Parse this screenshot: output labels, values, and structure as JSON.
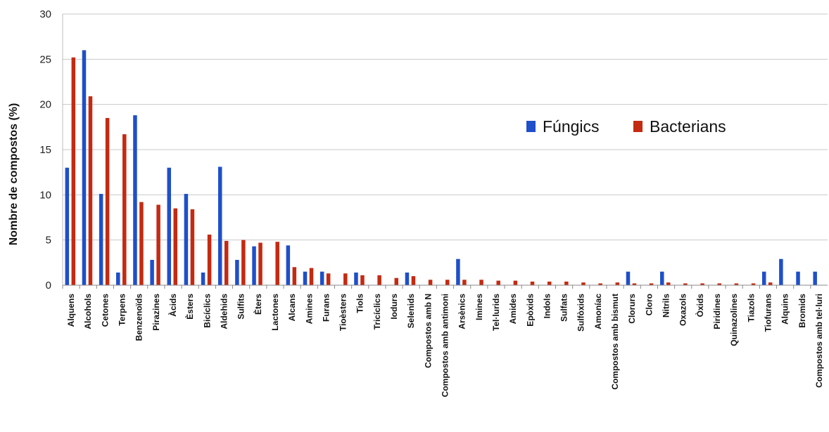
{
  "chart_data": {
    "type": "bar",
    "ylabel": "Nombre de compostos (%)",
    "xlabel": "",
    "ylim": [
      0,
      30
    ],
    "yticks": [
      0,
      5,
      10,
      15,
      20,
      25,
      30
    ],
    "grid": true,
    "legend_position": "right",
    "categories": [
      "Alquens",
      "Alcohols",
      "Cetones",
      "Terpens",
      "Benzenoïds",
      "Pirazines",
      "Àcids",
      "Èsters",
      "Bicíclics",
      "Aldehids",
      "Sulfits",
      "Èters",
      "Lactones",
      "Alcans",
      "Amines",
      "Furans",
      "Tioèsters",
      "Tiols",
      "Tricíclics",
      "Iodurs",
      "Selenids",
      "Compostos amb N",
      "Compostos amb antimoni",
      "Arsènics",
      "Imines",
      "Tel·lurids",
      "Amides",
      "Epòxids",
      "Indols",
      "Sulfats",
      "Sulfòxids",
      "Amoníac",
      "Compostos amb bismut",
      "Clorurs",
      "Cloro",
      "Nitrils",
      "Oxazols",
      "Òxids",
      "Piridines",
      "Quinazolines",
      "Tiazols",
      "Tiofurans",
      "Alquins",
      "Bromids",
      "Compostos amb tel·luri"
    ],
    "series": [
      {
        "name": "Fúngics",
        "color": "#1f4fc9",
        "values": [
          13.0,
          26.0,
          10.1,
          1.4,
          18.8,
          2.8,
          13.0,
          10.1,
          1.4,
          13.1,
          2.8,
          4.3,
          0,
          4.4,
          1.5,
          1.5,
          0,
          1.4,
          0,
          0,
          1.4,
          0,
          0,
          2.9,
          0,
          0,
          0,
          0,
          0,
          0,
          0,
          0,
          0,
          1.5,
          0,
          1.5,
          0,
          0,
          0,
          0,
          0,
          1.5,
          2.9,
          1.5,
          1.5
        ]
      },
      {
        "name": "Bacterians",
        "color": "#c42a12",
        "values": [
          25.2,
          20.9,
          18.5,
          16.7,
          9.2,
          8.9,
          8.5,
          8.4,
          5.6,
          4.9,
          5.0,
          4.7,
          4.8,
          2.0,
          1.9,
          1.3,
          1.3,
          1.1,
          1.1,
          0.8,
          1.0,
          0.6,
          0.6,
          0.6,
          0.6,
          0.5,
          0.5,
          0.4,
          0.4,
          0.4,
          0.3,
          0.2,
          0.3,
          0.2,
          0.2,
          0.3,
          0.2,
          0.2,
          0.2,
          0.2,
          0.2,
          0.3,
          0,
          0,
          0
        ]
      }
    ]
  }
}
